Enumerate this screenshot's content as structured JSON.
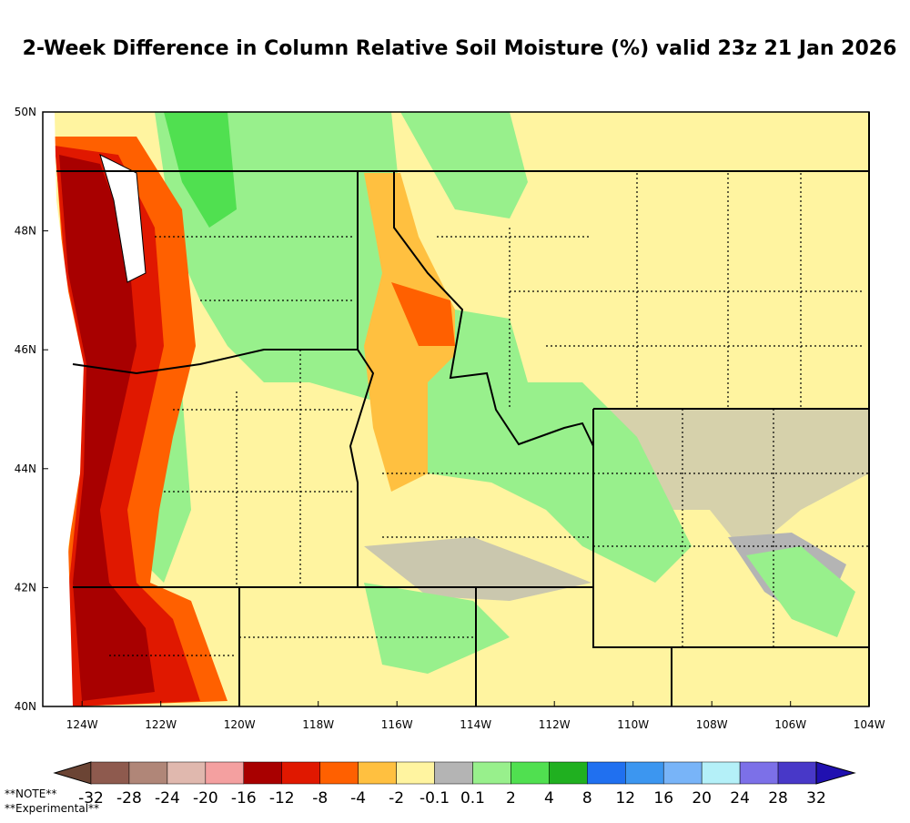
{
  "title": "2-Week Difference in Column Relative Soil Moisture (%) valid 23z 21 Jan 2026",
  "lat_ticks": [
    "40N",
    "42N",
    "44N",
    "46N",
    "48N",
    "50N"
  ],
  "lon_ticks": [
    "124W",
    "122W",
    "120W",
    "118W",
    "116W",
    "114W",
    "112W",
    "110W",
    "108W",
    "106W",
    "104W"
  ],
  "colorbar": {
    "labels": [
      "-32",
      "-28",
      "-24",
      "-20",
      "-16",
      "-12",
      "-8",
      "-4",
      "-2",
      "-0.1",
      "0.1",
      "2",
      "4",
      "8",
      "12",
      "16",
      "20",
      "24",
      "28",
      "32"
    ],
    "low_color": "#6b4434",
    "colors": [
      "#8e5a4e",
      "#b08678",
      "#e0b8ae",
      "#f4a0a0",
      "#a80000",
      "#e01800",
      "#ff6000",
      "#ffc040",
      "#fff4a0",
      "#b4b4b4",
      "#98f08c",
      "#50e050",
      "#20b020",
      "#2070f0",
      "#3c96f0",
      "#78b4f8",
      "#b4f0f8",
      "#7c70e8",
      "#4838c8"
    ],
    "high_color": "#2010b0"
  },
  "notes": [
    "**NOTE**",
    "**Experimental**"
  ]
}
